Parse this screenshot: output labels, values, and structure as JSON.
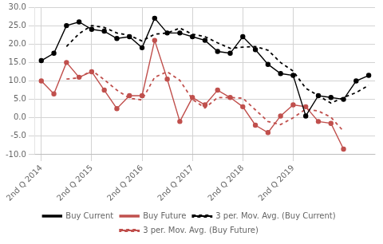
{
  "chart_data": {
    "type": "line",
    "categories": [
      "2nd Q 2014",
      null,
      null,
      null,
      "2nd Q 2015",
      null,
      null,
      null,
      "2nd Q 2016",
      null,
      null,
      null,
      "2nd Q 2017",
      null,
      null,
      null,
      "2nd Q 2018",
      null,
      null,
      null,
      "2nd Q 2019",
      null,
      null,
      null,
      null,
      null,
      null
    ],
    "series": [
      {
        "name": "Buy Current",
        "color": "#000000",
        "marker": "circle",
        "line_style": "solid",
        "values": [
          15.5,
          17.5,
          25.0,
          26.0,
          24.0,
          23.5,
          21.5,
          22.0,
          19.0,
          27.0,
          23.0,
          23.0,
          22.0,
          21.0,
          18.0,
          17.5,
          22.0,
          18.5,
          14.5,
          12.0,
          11.5,
          0.5,
          6.0,
          5.5,
          5.0,
          10.0,
          11.5
        ]
      },
      {
        "name": "Buy Future",
        "color": "#c0504d",
        "marker": "circle",
        "line_style": "solid",
        "values": [
          10.0,
          6.5,
          15.0,
          11.0,
          12.5,
          7.5,
          2.5,
          6.0,
          6.0,
          21.0,
          10.5,
          -1.0,
          5.5,
          3.5,
          7.5,
          5.5,
          3.0,
          -2.0,
          -4.0,
          0.5,
          3.5,
          3.0,
          -1.0,
          -1.5,
          -8.5,
          null,
          null
        ]
      },
      {
        "name": "3 per. Mov. Avg. (Buy Current)",
        "color": "#000000",
        "marker": "none",
        "line_style": "dashed",
        "values": [
          null,
          null,
          19.333333,
          22.833333,
          25.0,
          24.5,
          23.0,
          22.333333,
          20.833333,
          22.666667,
          23.0,
          24.333333,
          22.666667,
          22.0,
          20.333333,
          18.833333,
          19.166667,
          19.333333,
          18.333333,
          15.0,
          12.666667,
          8.0,
          6.0,
          4.0,
          5.5,
          6.833333,
          8.833333
        ]
      },
      {
        "name": "3 per. Mov. Avg. (Buy Future)",
        "color": "#c0504d",
        "marker": "none",
        "line_style": "dashed",
        "values": [
          null,
          null,
          10.5,
          10.833333,
          12.833333,
          10.333333,
          7.5,
          5.333333,
          4.833333,
          11.0,
          12.5,
          10.166667,
          5.0,
          2.666667,
          5.5,
          5.5,
          5.333333,
          2.166667,
          -1.0,
          -1.833333,
          0.0,
          2.333333,
          1.833333,
          0.166667,
          -3.666667,
          null,
          null
        ]
      }
    ],
    "ylim": [
      -10.0,
      30.0
    ],
    "yticks": [
      {
        "value": -10,
        "label": "-10.0"
      },
      {
        "value": -5,
        "label": "-5.0"
      },
      {
        "value": 0,
        "label": "0.0"
      },
      {
        "value": 5,
        "label": "5.0"
      },
      {
        "value": 10,
        "label": "10.0"
      },
      {
        "value": 15,
        "label": "15.0"
      },
      {
        "value": 20,
        "label": "20.0"
      },
      {
        "value": 25,
        "label": "25.0"
      },
      {
        "value": 30,
        "label": "30.0"
      }
    ],
    "grid": true,
    "legend": "bottom"
  }
}
